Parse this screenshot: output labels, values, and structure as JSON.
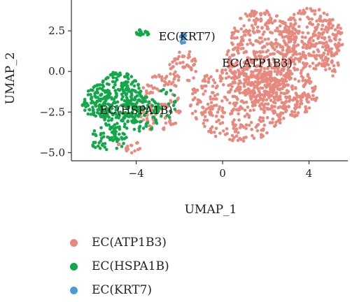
{
  "chart_data": {
    "type": "scatter",
    "title": "",
    "xlabel": "UMAP_1",
    "ylabel": "UMAP_2",
    "xlim": [
      -7.0,
      5.8
    ],
    "ylim": [
      -5.5,
      4.4
    ],
    "xticks": [
      {
        "value": -4,
        "label": "−4"
      },
      {
        "value": 0,
        "label": "0"
      },
      {
        "value": 4,
        "label": "4"
      }
    ],
    "yticks": [
      {
        "value": 2.5,
        "label": "2.5"
      },
      {
        "value": 0.0,
        "label": "0.0"
      },
      {
        "value": -2.5,
        "label": "−2.5"
      },
      {
        "value": -5.0,
        "label": "−5.0"
      }
    ],
    "grid": false,
    "legend_position": "bottom",
    "series": [
      {
        "name": "EC(ATP1B3)",
        "color": "#E8897E",
        "regions": [
          {
            "cx": 1.8,
            "cy": 1.0,
            "rx": 1.6,
            "ry": 2.9,
            "n": 420
          },
          {
            "cx": 4.1,
            "cy": 2.0,
            "rx": 1.5,
            "ry": 1.9,
            "n": 300
          },
          {
            "cx": 0.8,
            "cy": -1.9,
            "rx": 2.3,
            "ry": 2.4,
            "n": 380
          },
          {
            "cx": 2.9,
            "cy": -1.3,
            "rx": 1.5,
            "ry": 1.6,
            "n": 200
          },
          {
            "cx": -2.9,
            "cy": -2.0,
            "rx": 1.0,
            "ry": 1.8,
            "n": 110
          },
          {
            "cx": -1.8,
            "cy": 0.3,
            "rx": 0.7,
            "ry": 1.0,
            "n": 50
          },
          {
            "cx": -4.3,
            "cy": -4.7,
            "rx": 0.7,
            "ry": 0.4,
            "n": 15
          },
          {
            "cx": 5.1,
            "cy": 0.6,
            "rx": 0.4,
            "ry": 0.9,
            "n": 25
          }
        ],
        "label": {
          "text": "EC(ATP1B3)",
          "x": 1.6,
          "y": 0.5
        }
      },
      {
        "name": "EC(HSPA1B)",
        "color": "#12A84A",
        "regions": [
          {
            "cx": -4.8,
            "cy": -1.8,
            "rx": 1.1,
            "ry": 1.8,
            "n": 230
          },
          {
            "cx": -5.8,
            "cy": -1.9,
            "rx": 0.7,
            "ry": 1.1,
            "n": 90
          },
          {
            "cx": -3.8,
            "cy": -2.6,
            "rx": 1.0,
            "ry": 1.1,
            "n": 90
          },
          {
            "cx": -5.3,
            "cy": -4.1,
            "rx": 0.9,
            "ry": 0.8,
            "n": 60
          },
          {
            "cx": -3.7,
            "cy": 2.4,
            "rx": 0.35,
            "ry": 0.2,
            "n": 22
          },
          {
            "cx": -2.6,
            "cy": -1.9,
            "rx": 0.5,
            "ry": 1.0,
            "n": 18
          }
        ],
        "label": {
          "text": "EC(HSPA1B)",
          "x": -4.0,
          "y": -2.4
        }
      },
      {
        "name": "EC(KRT7)",
        "color": "#4A9BD5",
        "regions": [
          {
            "cx": -1.85,
            "cy": 2.05,
            "rx": 0.15,
            "ry": 0.35,
            "n": 18
          }
        ],
        "label": {
          "text": "EC(KRT7)",
          "x": -1.65,
          "y": 2.15
        }
      }
    ]
  }
}
